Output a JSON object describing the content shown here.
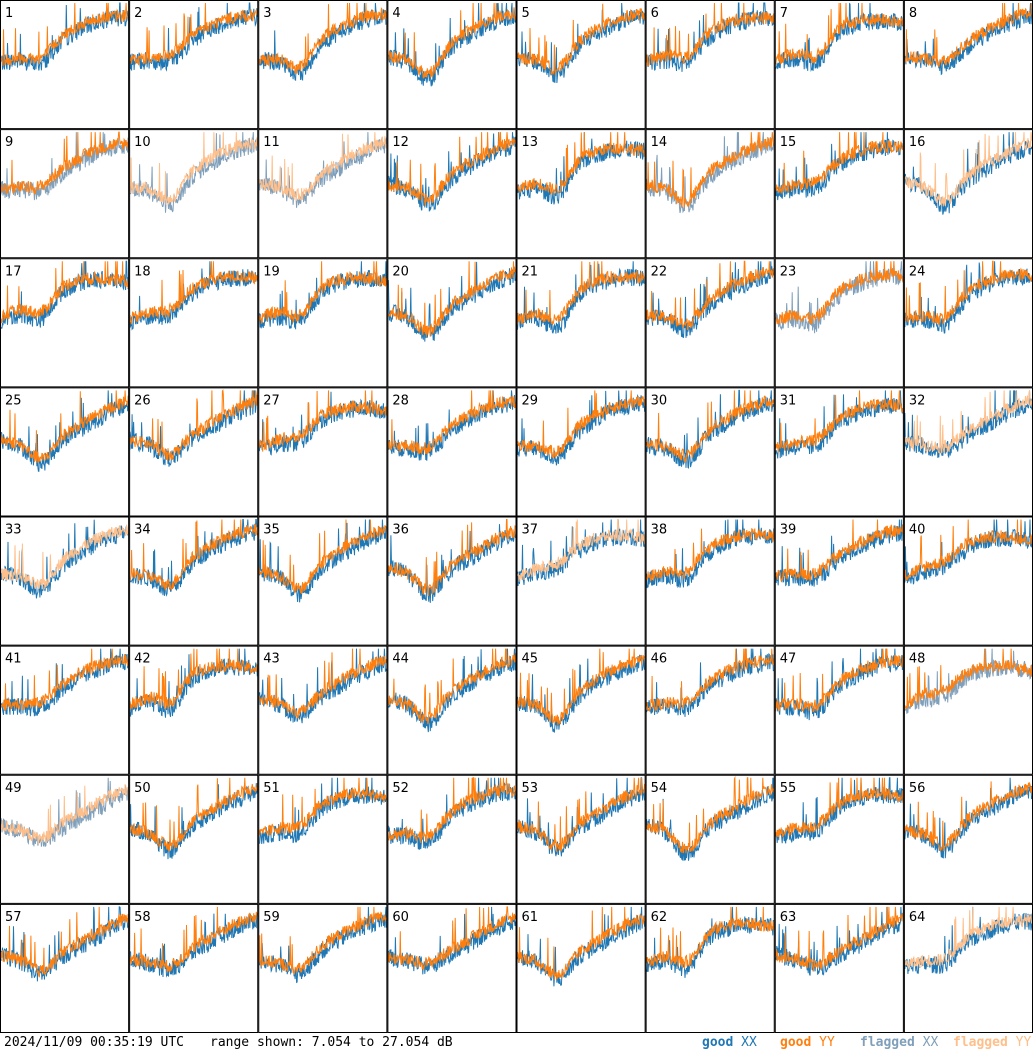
{
  "chart_data": {
    "type": "line",
    "layout": "8x8 grid of per-tile spectra",
    "tiles": [
      {
        "id": "1",
        "xx": "good",
        "yy": "good"
      },
      {
        "id": "2",
        "xx": "good",
        "yy": "good"
      },
      {
        "id": "3",
        "xx": "good",
        "yy": "good"
      },
      {
        "id": "4",
        "xx": "good",
        "yy": "good"
      },
      {
        "id": "5",
        "xx": "good",
        "yy": "good"
      },
      {
        "id": "6",
        "xx": "good",
        "yy": "good"
      },
      {
        "id": "7",
        "xx": "good",
        "yy": "good"
      },
      {
        "id": "8",
        "xx": "good",
        "yy": "good"
      },
      {
        "id": "9",
        "xx": "flagged",
        "yy": "good"
      },
      {
        "id": "10",
        "xx": "flagged",
        "yy": "flagged"
      },
      {
        "id": "11",
        "xx": "flagged",
        "yy": "flagged"
      },
      {
        "id": "12",
        "xx": "good",
        "yy": "good"
      },
      {
        "id": "13",
        "xx": "good",
        "yy": "good"
      },
      {
        "id": "14",
        "xx": "flagged",
        "yy": "good"
      },
      {
        "id": "15",
        "xx": "good",
        "yy": "good"
      },
      {
        "id": "16",
        "xx": "good",
        "yy": "flagged"
      },
      {
        "id": "17",
        "xx": "good",
        "yy": "good"
      },
      {
        "id": "18",
        "xx": "good",
        "yy": "good"
      },
      {
        "id": "19",
        "xx": "good",
        "yy": "good"
      },
      {
        "id": "20",
        "xx": "good",
        "yy": "good"
      },
      {
        "id": "21",
        "xx": "good",
        "yy": "good"
      },
      {
        "id": "22",
        "xx": "good",
        "yy": "good"
      },
      {
        "id": "23",
        "xx": "flagged",
        "yy": "good"
      },
      {
        "id": "24",
        "xx": "good",
        "yy": "good"
      },
      {
        "id": "25",
        "xx": "good",
        "yy": "good"
      },
      {
        "id": "26",
        "xx": "good",
        "yy": "good"
      },
      {
        "id": "27",
        "xx": "good",
        "yy": "good"
      },
      {
        "id": "28",
        "xx": "good",
        "yy": "good"
      },
      {
        "id": "29",
        "xx": "good",
        "yy": "good"
      },
      {
        "id": "30",
        "xx": "good",
        "yy": "good"
      },
      {
        "id": "31",
        "xx": "good",
        "yy": "good"
      },
      {
        "id": "32",
        "xx": "good",
        "yy": "flagged"
      },
      {
        "id": "33",
        "xx": "good",
        "yy": "flagged"
      },
      {
        "id": "34",
        "xx": "good",
        "yy": "good"
      },
      {
        "id": "35",
        "xx": "good",
        "yy": "good"
      },
      {
        "id": "36",
        "xx": "good",
        "yy": "good"
      },
      {
        "id": "37",
        "xx": "good",
        "yy": "flagged"
      },
      {
        "id": "38",
        "xx": "good",
        "yy": "good"
      },
      {
        "id": "39",
        "xx": "good",
        "yy": "good"
      },
      {
        "id": "40",
        "xx": "good",
        "yy": "good"
      },
      {
        "id": "41",
        "xx": "good",
        "yy": "good"
      },
      {
        "id": "42",
        "xx": "good",
        "yy": "good"
      },
      {
        "id": "43",
        "xx": "good",
        "yy": "good"
      },
      {
        "id": "44",
        "xx": "good",
        "yy": "good"
      },
      {
        "id": "45",
        "xx": "good",
        "yy": "good"
      },
      {
        "id": "46",
        "xx": "good",
        "yy": "good"
      },
      {
        "id": "47",
        "xx": "good",
        "yy": "good"
      },
      {
        "id": "48",
        "xx": "flagged",
        "yy": "good"
      },
      {
        "id": "49",
        "xx": "flagged",
        "yy": "flagged"
      },
      {
        "id": "50",
        "xx": "good",
        "yy": "good"
      },
      {
        "id": "51",
        "xx": "good",
        "yy": "good"
      },
      {
        "id": "52",
        "xx": "good",
        "yy": "good"
      },
      {
        "id": "53",
        "xx": "good",
        "yy": "good"
      },
      {
        "id": "54",
        "xx": "good",
        "yy": "good"
      },
      {
        "id": "55",
        "xx": "good",
        "yy": "good"
      },
      {
        "id": "56",
        "xx": "good",
        "yy": "good"
      },
      {
        "id": "57",
        "xx": "good",
        "yy": "good"
      },
      {
        "id": "58",
        "xx": "good",
        "yy": "good"
      },
      {
        "id": "59",
        "xx": "good",
        "yy": "good"
      },
      {
        "id": "60",
        "xx": "good",
        "yy": "good"
      },
      {
        "id": "61",
        "xx": "good",
        "yy": "good"
      },
      {
        "id": "62",
        "xx": "good",
        "yy": "good"
      },
      {
        "id": "63",
        "xx": "good",
        "yy": "good"
      },
      {
        "id": "64",
        "xx": "good",
        "yy": "flagged"
      }
    ],
    "series": [
      {
        "name": "good XX",
        "color": "#1f77b4"
      },
      {
        "name": "good YY",
        "color": "#ff7f0e"
      },
      {
        "name": "flagged XX",
        "color": "#7f9fba"
      },
      {
        "name": "flagged YY",
        "color": "#ffbf8a"
      }
    ],
    "y_range_db": [
      7.054,
      27.054
    ]
  },
  "footer": {
    "timestamp": "2024/11/09 00:35:19 UTC",
    "range": "range shown: 7.054 to 27.054 dB"
  },
  "legend": {
    "good_xx": {
      "word": "good",
      "pol": "XX",
      "color": "#1f77b4"
    },
    "good_yy": {
      "word": "good",
      "pol": "YY",
      "color": "#ff7f0e"
    },
    "flagged_xx": {
      "word": "flagged",
      "pol": "XX",
      "color": "#7f9fba"
    },
    "flagged_yy": {
      "word": "flagged",
      "pol": "YY",
      "color": "#ffbf8a"
    }
  }
}
